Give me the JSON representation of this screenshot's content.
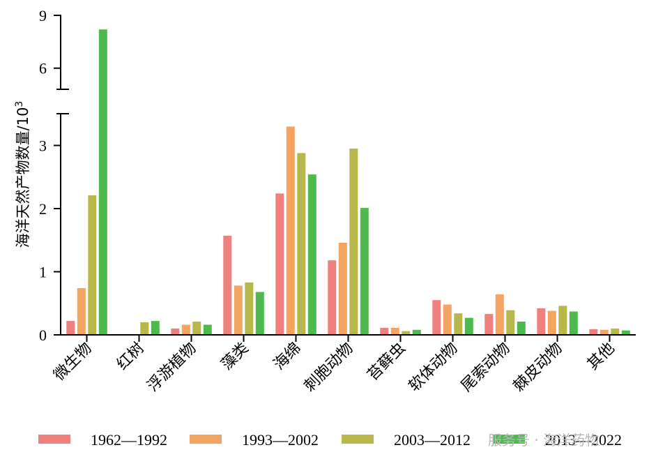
{
  "chart_data": {
    "type": "bar",
    "ylabel": "海洋天然产物数量/10",
    "ylabel_sup": "3",
    "broken_axis": {
      "lower_range": [
        0,
        3.5
      ],
      "upper_range": [
        4.8,
        9
      ]
    },
    "y_ticks": [
      0,
      1,
      2,
      3,
      6,
      9
    ],
    "categories": [
      "微生物",
      "红树",
      "浮游植物",
      "藻类",
      "海绵",
      "刺胞动物",
      "苔藓虫",
      "软体动物",
      "尾索动物",
      "棘皮动物",
      "其他"
    ],
    "series": [
      {
        "name": "1962—1992",
        "color": "#f08080",
        "values": [
          0.22,
          0.0,
          0.1,
          1.57,
          2.24,
          1.18,
          0.11,
          0.55,
          0.33,
          0.42,
          0.09
        ]
      },
      {
        "name": "1993—2002",
        "color": "#f4a460",
        "values": [
          0.74,
          0.0,
          0.16,
          0.78,
          3.3,
          1.46,
          0.11,
          0.48,
          0.64,
          0.38,
          0.08
        ]
      },
      {
        "name": "2003—2012",
        "color": "#b8b84a",
        "values": [
          2.21,
          0.2,
          0.21,
          0.83,
          2.88,
          2.95,
          0.06,
          0.34,
          0.39,
          0.46,
          0.1
        ]
      },
      {
        "name": "2013—2022",
        "color": "#4cba4c",
        "values": [
          8.2,
          0.22,
          0.16,
          0.68,
          2.54,
          2.01,
          0.08,
          0.27,
          0.21,
          0.37,
          0.07
        ]
      }
    ],
    "legend": "bottom"
  },
  "watermark": "服务号 · 海洋药物"
}
